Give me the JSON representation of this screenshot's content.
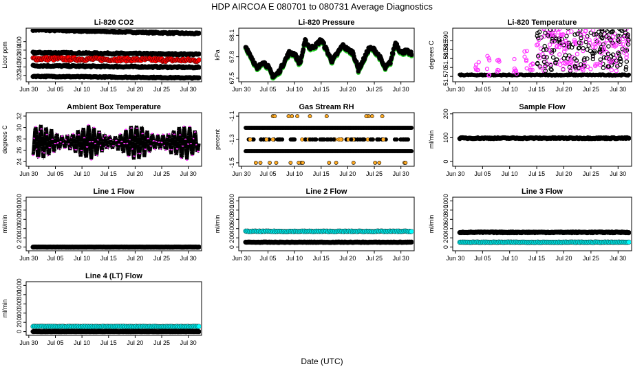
{
  "title": "HDP    AIRCOA E    080701 to 080731    Average Diagnostics",
  "xlabel": "Date (UTC)",
  "date_ticks": [
    "Jun 30",
    "Jul 05",
    "Jul 10",
    "Jul 15",
    "Jul 20",
    "Jul 25",
    "Jul 30"
  ],
  "date_tick_days": [
    0,
    5,
    10,
    15,
    20,
    25,
    30
  ],
  "x_range_days": [
    -0.5,
    32.5
  ],
  "colors": {
    "black": "#000000",
    "red": "#ff0000",
    "magenta": "#ff33ff",
    "green": "#22cc22",
    "cyan": "#00ffff",
    "orange": "#ffaa22"
  },
  "chart_data": [
    {
      "id": "co2",
      "type": "scatter",
      "title": "Li-820 CO2",
      "ylabel": "Licor ppm",
      "ylim": [
        305,
        432
      ],
      "yticks": [
        320,
        340,
        360,
        380,
        400
      ],
      "series": [
        {
          "name": "ref-high",
          "color": "black",
          "start": 428,
          "end": 419,
          "amp": 1.5
        },
        {
          "name": "ref-mid-upper",
          "color": "black",
          "start": 374,
          "end": 370,
          "amp": 1.5
        },
        {
          "name": "sample",
          "color": "red",
          "start": 360,
          "end": 356,
          "amp": 4
        },
        {
          "name": "ref-mid-lower",
          "color": "black",
          "start": 343,
          "end": 339,
          "amp": 1.5
        },
        {
          "name": "ref-low",
          "color": "black",
          "start": 318,
          "end": 314,
          "amp": 1
        }
      ]
    },
    {
      "id": "pressure",
      "type": "line",
      "title": "Li-820 Pressure",
      "ylabel": "kPa",
      "ylim": [
        67.45,
        68.2
      ],
      "yticks": [
        67.5,
        67.8,
        68.1
      ],
      "series": [
        {
          "name": "pressure",
          "color": "black",
          "shadow": "green",
          "x": [
            0,
            1,
            2,
            3,
            4,
            5,
            6,
            7,
            8,
            9,
            10,
            11,
            12,
            13,
            14,
            15,
            16,
            17,
            18,
            19,
            20,
            21,
            22,
            23,
            24,
            25,
            26,
            27,
            28,
            29,
            30,
            31,
            32
          ],
          "values": [
            68.02,
            67.92,
            67.78,
            67.62,
            67.74,
            67.66,
            67.52,
            67.58,
            67.72,
            67.86,
            67.84,
            67.7,
            68.02,
            67.92,
            67.96,
            68.04,
            67.9,
            67.74,
            67.84,
            67.96,
            67.9,
            67.86,
            67.62,
            67.76,
            67.92,
            67.9,
            67.8,
            67.64,
            67.72,
            68.0,
            67.86,
            67.88,
            67.84
          ]
        }
      ]
    },
    {
      "id": "licor_temp",
      "type": "scatter",
      "title": "Li-820 Temperature",
      "ylabel": "degrees C",
      "ylim": [
        51.567,
        51.597
      ],
      "yticks": [
        51.57,
        51.575,
        51.58,
        51.585,
        51.59
      ],
      "ytick_labels": [
        "51.570",
        "",
        "51.580",
        "51.585",
        "51.590"
      ],
      "series": [
        {
          "name": "licor-temp",
          "color": "black",
          "alt": "magenta",
          "base": 51.5705,
          "bursts": [
            [
              4,
              51.578
            ],
            [
              6,
              51.585
            ],
            [
              8,
              51.58
            ],
            [
              11,
              51.58
            ],
            [
              13,
              51.585
            ],
            [
              14,
              51.578
            ]
          ],
          "high_from": 15,
          "high_range": [
            51.573,
            51.597
          ]
        }
      ]
    },
    {
      "id": "box_temp",
      "type": "line",
      "title": "Ambient Box Temperature",
      "ylabel": "degrees C",
      "ylim": [
        23.2,
        32.6
      ],
      "yticks": [
        24,
        26,
        28,
        30,
        32
      ],
      "series": [
        {
          "name": "box-temp",
          "color": "black",
          "alt": "magenta",
          "mean": 27.4,
          "daily_amp": 2.6,
          "days": 32
        }
      ]
    },
    {
      "id": "rh",
      "type": "scatter",
      "title": "Gas Stream RH",
      "ylabel": "percent",
      "ylim": [
        -1.53,
        -1.07
      ],
      "yticks": [
        -1.5,
        -1.3,
        -1.1
      ],
      "ytick_labels": [
        "-1.5",
        "-1.3",
        "-1.1"
      ],
      "series": [
        {
          "name": "rh",
          "color": "black",
          "alt": "orange",
          "levels": [
            -1.1,
            -1.2,
            -1.3,
            -1.4,
            -1.5
          ]
        }
      ]
    },
    {
      "id": "sample_flow",
      "type": "scatter",
      "title": "Sample Flow",
      "ylabel": "ml/min",
      "ylim": [
        -20,
        205
      ],
      "yticks": [
        0,
        100,
        200
      ],
      "series": [
        {
          "name": "sample-flow",
          "color": "black",
          "value": 98,
          "amp": 2
        }
      ]
    },
    {
      "id": "line1",
      "type": "scatter",
      "title": "Line 1 Flow",
      "ylabel": "ml/min",
      "ylim": [
        -80,
        1080
      ],
      "yticks": [
        0,
        200,
        400,
        600,
        800,
        1000
      ],
      "series": [
        {
          "name": "line1",
          "color": "black",
          "value": 0,
          "amp": 2
        }
      ]
    },
    {
      "id": "line2",
      "type": "scatter",
      "title": "Line 2 Flow",
      "ylabel": "ml/min",
      "ylim": [
        -80,
        1080
      ],
      "yticks": [
        0,
        200,
        400,
        600,
        800,
        1000
      ],
      "series": [
        {
          "name": "line2-high",
          "color": "cyan",
          "value": 340,
          "amp": 8
        },
        {
          "name": "line2-low",
          "color": "black",
          "value": 105,
          "amp": 5
        }
      ]
    },
    {
      "id": "line3",
      "type": "scatter",
      "title": "Line 3 Flow",
      "ylabel": "ml/min",
      "ylim": [
        -80,
        1080
      ],
      "yticks": [
        0,
        200,
        400,
        600,
        800,
        1000
      ],
      "series": [
        {
          "name": "line3-high",
          "color": "black",
          "value": 320,
          "amp": 8
        },
        {
          "name": "line3-low",
          "color": "cyan",
          "value": 105,
          "amp": 5
        }
      ]
    },
    {
      "id": "line4",
      "type": "scatter",
      "title": "Line 4 (LT) Flow",
      "ylabel": "ml/min",
      "ylim": [
        -80,
        1080
      ],
      "yticks": [
        0,
        200,
        400,
        600,
        800,
        1000
      ],
      "series": [
        {
          "name": "line4-high",
          "color": "cyan",
          "value": 110,
          "amp": 5
        },
        {
          "name": "line4-low",
          "color": "black",
          "value": 0,
          "amp": 2
        }
      ]
    }
  ]
}
